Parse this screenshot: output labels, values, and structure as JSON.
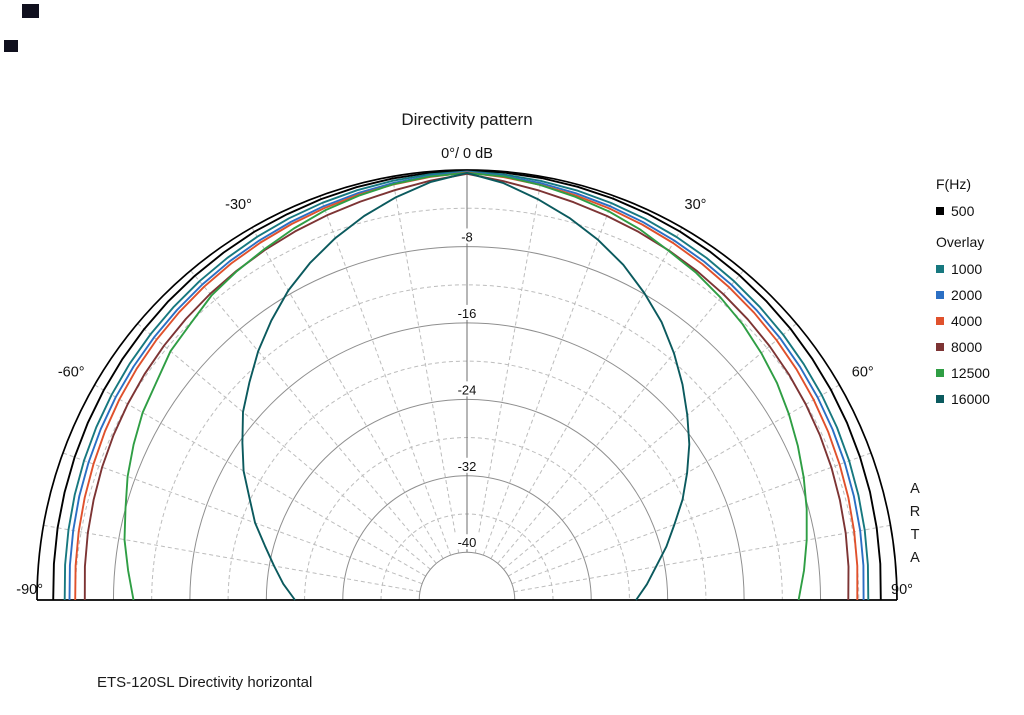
{
  "title": "Directivity pattern",
  "caption": "ETS-120SL Directivity horizontal",
  "arta": [
    "A",
    "R",
    "T",
    "A"
  ],
  "legend": {
    "primary_header": "F(Hz)",
    "primary": [
      {
        "label": "500",
        "color": "#000000"
      }
    ],
    "overlay_header": "Overlay",
    "overlay": [
      {
        "label": "1000",
        "color": "#17787f"
      },
      {
        "label": "2000",
        "color": "#2b6fc4"
      },
      {
        "label": "4000",
        "color": "#e0512c"
      },
      {
        "label": "8000",
        "color": "#7d3434"
      },
      {
        "label": "12500",
        "color": "#2f9e44"
      },
      {
        "label": "16000",
        "color": "#0b5a5e"
      }
    ]
  },
  "chart_data": {
    "type": "line",
    "subtype": "half_polar_directivity",
    "title": "Directivity pattern",
    "units": "dB",
    "apex_label": "0°/ 0 dB",
    "db_axis": {
      "max": 0,
      "floor": -45,
      "solid_rings_db": [
        -8,
        -16,
        -24,
        -32,
        -40
      ],
      "dashed_rings_db": [
        -4,
        -12,
        -20,
        -28,
        -36
      ],
      "spoke_step_deg": 10
    },
    "db_ticks": [
      {
        "text": "-8",
        "db": -8
      },
      {
        "text": "-16",
        "db": -16
      },
      {
        "text": "-24",
        "db": -24
      },
      {
        "text": "-32",
        "db": -32
      },
      {
        "text": "-40",
        "db": -40
      }
    ],
    "angle_labels": [
      {
        "text": "-90°",
        "angle": -90
      },
      {
        "text": "-60°",
        "angle": -60
      },
      {
        "text": "-30°",
        "angle": -30
      },
      {
        "text": "30°",
        "angle": 30
      },
      {
        "text": "60°",
        "angle": 60
      },
      {
        "text": "90°",
        "angle": 90
      }
    ],
    "angles_deg": [
      -90,
      -85,
      -80,
      -75,
      -70,
      -65,
      -60,
      -55,
      -50,
      -45,
      -40,
      -35,
      -30,
      -25,
      -20,
      -15,
      -10,
      -5,
      0,
      5,
      10,
      15,
      20,
      25,
      30,
      35,
      40,
      45,
      50,
      55,
      60,
      65,
      70,
      75,
      80,
      85,
      90
    ],
    "series": [
      {
        "name": "500",
        "color": "#000000",
        "values": [
          -1.7,
          -1.6,
          -1.5,
          -1.4,
          -1.3,
          -1.2,
          -1.1,
          -1.0,
          -0.9,
          -0.8,
          -0.7,
          -0.6,
          -0.5,
          -0.45,
          -0.35,
          -0.28,
          -0.2,
          -0.12,
          -0.05,
          -0.1,
          -0.16,
          -0.23,
          -0.3,
          -0.38,
          -0.46,
          -0.55,
          -0.64,
          -0.73,
          -0.82,
          -0.92,
          -1.02,
          -1.12,
          -1.23,
          -1.34,
          -1.46,
          -1.58,
          -1.7
        ]
      },
      {
        "name": "1000",
        "color": "#17787f",
        "values": [
          -2.9,
          -2.78,
          -2.65,
          -2.5,
          -2.35,
          -2.2,
          -2.05,
          -1.9,
          -1.75,
          -1.6,
          -1.45,
          -1.28,
          -1.1,
          -0.93,
          -0.76,
          -0.6,
          -0.44,
          -0.28,
          -0.15,
          -0.3,
          -0.46,
          -0.62,
          -0.8,
          -0.97,
          -1.14,
          -1.3,
          -1.48,
          -1.65,
          -1.8,
          -1.97,
          -2.12,
          -2.28,
          -2.44,
          -2.6,
          -2.74,
          -2.88,
          -3.0
        ]
      },
      {
        "name": "2000",
        "color": "#2b6fc4",
        "values": [
          -3.4,
          -3.28,
          -3.15,
          -3.0,
          -2.86,
          -2.7,
          -2.55,
          -2.4,
          -2.24,
          -2.08,
          -1.9,
          -1.72,
          -1.54,
          -1.35,
          -1.14,
          -0.92,
          -0.68,
          -0.44,
          -0.2,
          -0.46,
          -0.7,
          -0.94,
          -1.16,
          -1.38,
          -1.58,
          -1.76,
          -1.94,
          -2.12,
          -2.28,
          -2.46,
          -2.62,
          -2.78,
          -2.94,
          -3.08,
          -3.22,
          -3.36,
          -3.5
        ]
      },
      {
        "name": "4000",
        "color": "#e0512c",
        "values": [
          -4.0,
          -3.88,
          -3.74,
          -3.58,
          -3.4,
          -3.2,
          -3.0,
          -2.8,
          -2.6,
          -2.4,
          -2.2,
          -2.0,
          -1.8,
          -1.58,
          -1.35,
          -1.1,
          -0.84,
          -0.55,
          -0.25,
          -0.58,
          -0.88,
          -1.15,
          -1.4,
          -1.64,
          -1.86,
          -2.08,
          -2.3,
          -2.5,
          -2.7,
          -2.9,
          -3.1,
          -3.3,
          -3.5,
          -3.68,
          -3.85,
          -4.0,
          -4.15
        ]
      },
      {
        "name": "8000",
        "color": "#7d3434",
        "values": [
          -5.0,
          -4.86,
          -4.7,
          -4.54,
          -4.36,
          -4.18,
          -4.0,
          -3.8,
          -3.6,
          -3.4,
          -3.18,
          -2.95,
          -2.7,
          -2.44,
          -2.16,
          -1.84,
          -1.45,
          -0.95,
          -0.4,
          -1.0,
          -1.5,
          -1.9,
          -2.22,
          -2.5,
          -2.76,
          -3.0,
          -3.24,
          -3.46,
          -3.66,
          -3.86,
          -4.06,
          -4.24,
          -4.42,
          -4.6,
          -4.76,
          -4.92,
          -5.1
        ]
      },
      {
        "name": "12500",
        "color": "#2f9e44",
        "values": [
          -10.1,
          -9.4,
          -8.6,
          -8.0,
          -7.2,
          -6.5,
          -5.8,
          -5.3,
          -4.5,
          -4.1,
          -3.4,
          -3.0,
          -2.6,
          -2.1,
          -1.6,
          -1.2,
          -0.8,
          -0.5,
          -0.3,
          -0.5,
          -0.9,
          -1.3,
          -1.7,
          -2.2,
          -2.8,
          -3.2,
          -3.7,
          -4.2,
          -4.8,
          -5.4,
          -6.1,
          -6.8,
          -7.5,
          -8.2,
          -8.9,
          -9.6,
          -10.3
        ]
      },
      {
        "name": "16000",
        "color": "#0b5a5e",
        "values": [
          -27.0,
          -25.7,
          -24.5,
          -23.1,
          -21.4,
          -19.9,
          -18.0,
          -16.3,
          -14.4,
          -12.8,
          -11.0,
          -9.3,
          -7.6,
          -6.1,
          -4.7,
          -3.4,
          -2.2,
          -1.1,
          -0.3,
          -1.2,
          -2.4,
          -3.6,
          -4.9,
          -6.3,
          -7.9,
          -9.5,
          -11.3,
          -13.1,
          -14.9,
          -16.6,
          -18.4,
          -20.1,
          -21.9,
          -23.4,
          -24.9,
          -26.1,
          -27.3
        ]
      }
    ]
  }
}
